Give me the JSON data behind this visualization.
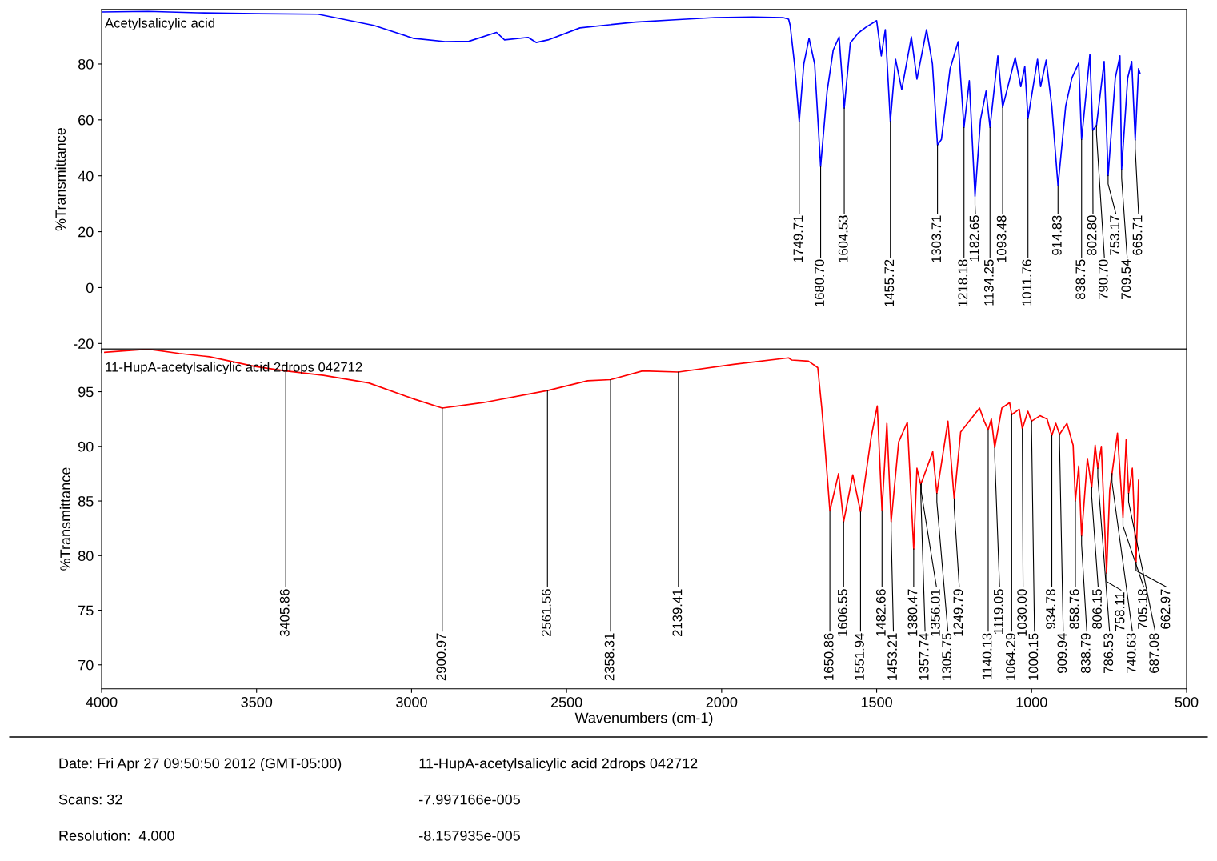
{
  "chart_data": [
    {
      "type": "line",
      "ylabel": "%Transmittance",
      "xlim": [
        4000,
        500
      ],
      "xticks": [
        4000,
        3500,
        3000,
        2500,
        2000,
        1500,
        1000,
        500
      ],
      "ylim": [
        -22,
        99.5
      ],
      "yticks": [
        -20,
        0,
        20,
        40,
        60,
        80
      ],
      "tick_labels": "y",
      "grid": false,
      "legend": false,
      "line_style": "solid",
      "series": [
        {
          "name": "Acetylsalicylic acid",
          "color": "#0000ff",
          "x": [
            4000,
            3850,
            3690,
            3500,
            3302,
            3122,
            2995,
            2892,
            2815,
            2726,
            2700,
            2624,
            2598,
            2560,
            2457,
            2278,
            2150,
            2022,
            1900,
            1802,
            1784,
            1779,
            1765,
            1749.71,
            1735,
            1718,
            1700,
            1680.7,
            1660,
            1640,
            1621,
            1604.53,
            1585,
            1560,
            1534,
            1500,
            1485,
            1472,
            1455.72,
            1439,
            1419,
            1388,
            1370,
            1339,
            1320,
            1303.71,
            1291,
            1263,
            1237,
            1218.18,
            1201,
            1182.65,
            1165,
            1147,
            1134.25,
            1109,
            1093.48,
            1053,
            1035,
            1022,
            1011.76,
            981,
            971,
            953,
            935,
            914.83,
            890,
            870,
            848,
            838.75,
            812,
            802.8,
            790.7,
            766,
            753.17,
            730,
            715,
            709.54,
            690,
            677,
            665.71,
            655,
            650
          ],
          "values": [
            98.6,
            98.8,
            98.3,
            98.0,
            97.8,
            93.8,
            89.2,
            88.0,
            88.1,
            91.3,
            88.6,
            89.5,
            87.7,
            88.6,
            92.9,
            95.0,
            95.8,
            96.6,
            96.8,
            96.6,
            96.0,
            93.8,
            80.0,
            59.4,
            80.0,
            89.2,
            80.0,
            43.3,
            70.0,
            85.0,
            89.7,
            64.2,
            87.5,
            91.0,
            93.2,
            95.5,
            82.9,
            92.3,
            59.4,
            81.7,
            70.8,
            89.7,
            74.6,
            92.3,
            80.0,
            51.0,
            53.0,
            78.3,
            88.0,
            57.3,
            74.0,
            32.7,
            60.0,
            70.3,
            57.3,
            82.9,
            64.5,
            82.3,
            71.9,
            79.1,
            60.5,
            81.7,
            71.9,
            81.4,
            65.0,
            36.4,
            65.0,
            75.0,
            80.3,
            53.0,
            83.4,
            56.2,
            58.0,
            80.9,
            40.1,
            75.0,
            82.9,
            42.2,
            75.0,
            80.9,
            52.8,
            78.3,
            76.6
          ]
        }
      ],
      "annotations": [
        {
          "text": "1749.71",
          "x": 1749.71,
          "y": 59.4
        },
        {
          "text": "1680.70",
          "x": 1680.7,
          "y": 43.3
        },
        {
          "text": "1604.53",
          "x": 1604.53,
          "y": 64.2
        },
        {
          "text": "1455.72",
          "x": 1455.72,
          "y": 59.4
        },
        {
          "text": "1303.71",
          "x": 1303.71,
          "y": 51.0
        },
        {
          "text": "1218.18",
          "x": 1218.18,
          "y": 57.3
        },
        {
          "text": "1182.65",
          "x": 1182.65,
          "y": 32.7
        },
        {
          "text": "1134.25",
          "x": 1134.25,
          "y": 57.3
        },
        {
          "text": "1093.48",
          "x": 1093.48,
          "y": 64.5
        },
        {
          "text": "1011.76",
          "x": 1011.76,
          "y": 60.5
        },
        {
          "text": "914.83",
          "x": 914.83,
          "y": 36.4
        },
        {
          "text": "838.75",
          "x": 838.75,
          "y": 53.0
        },
        {
          "text": "802.80",
          "x": 802.8,
          "y": 56.2
        },
        {
          "text": "790.70",
          "x": 790.7,
          "y": 58.0
        },
        {
          "text": "753.17",
          "x": 753.17,
          "y": 40.1
        },
        {
          "text": "709.54",
          "x": 709.54,
          "y": 42.2
        },
        {
          "text": "665.71",
          "x": 665.71,
          "y": 52.8
        }
      ]
    },
    {
      "type": "line",
      "ylabel": "%Transmittance",
      "xlabel": "Wavenumbers (cm-1)",
      "xlim": [
        4000,
        500
      ],
      "xticks": [
        4000,
        3500,
        3000,
        2500,
        2000,
        1500,
        1000,
        500
      ],
      "ylim": [
        67.8,
        98.9
      ],
      "yticks": [
        70,
        75,
        80,
        85,
        90,
        95
      ],
      "grid": false,
      "legend": false,
      "line_style": "solid",
      "series": [
        {
          "name": "11-HupA-acetylsalicylic acid 2drops 042712",
          "color": "#ff0000",
          "x": [
            3990,
            3850,
            3750,
            3652,
            3504,
            3405.86,
            3284,
            3138,
            2989,
            2900.97,
            2769,
            2561.56,
            2432,
            2358.31,
            2255,
            2139.41,
            1961,
            1784,
            1774,
            1720,
            1690,
            1677,
            1667,
            1650.86,
            1623,
            1606.55,
            1577,
            1551.94,
            1518,
            1498,
            1482.66,
            1467,
            1453.21,
            1429,
            1401,
            1380.47,
            1370,
            1357.74,
            1319,
            1305.75,
            1270,
            1249.79,
            1229,
            1168,
            1153,
            1140.13,
            1130,
            1119.05,
            1096,
            1071,
            1064.29,
            1040,
            1030.0,
            1012,
            1000.15,
            973,
            950,
            934.78,
            922,
            909.94,
            886,
            866,
            858.76,
            848,
            838.79,
            820,
            806.15,
            795,
            786.53,
            775,
            758.11,
            748,
            740.63,
            723,
            705.18,
            695,
            687.08,
            675,
            662.97,
            655
          ],
          "values": [
            98.6,
            98.9,
            98.5,
            98.2,
            97.3,
            96.9,
            96.5,
            95.8,
            94.3,
            93.5,
            94.0,
            95.1,
            96.0,
            96.1,
            96.9,
            96.8,
            97.5,
            98.1,
            97.9,
            97.8,
            97.2,
            93.5,
            90.1,
            84.1,
            87.5,
            83.1,
            87.4,
            84.0,
            90.8,
            93.7,
            84.1,
            92.1,
            83.1,
            90.4,
            92.2,
            80.6,
            88.0,
            86.5,
            89.5,
            85.7,
            92.3,
            85.2,
            91.3,
            93.5,
            92.3,
            91.5,
            92.5,
            89.9,
            93.5,
            94.0,
            92.9,
            93.4,
            91.6,
            93.2,
            92.3,
            92.8,
            92.5,
            91.0,
            92.1,
            91.1,
            92.1,
            90.1,
            85.0,
            88.2,
            81.8,
            88.9,
            86.2,
            90.1,
            88.0,
            90.0,
            78.4,
            86.0,
            87.5,
            91.2,
            83.5,
            90.6,
            85.7,
            88.0,
            79.4,
            86.9
          ]
        }
      ],
      "annotations": [
        {
          "text": "3405.86",
          "x": 3405.86,
          "y": 96.9
        },
        {
          "text": "2900.97",
          "x": 2900.97,
          "y": 93.5
        },
        {
          "text": "2561.56",
          "x": 2561.56,
          "y": 95.1
        },
        {
          "text": "2358.31",
          "x": 2358.31,
          "y": 96.1
        },
        {
          "text": "2139.41",
          "x": 2139.41,
          "y": 96.8
        },
        {
          "text": "1650.86",
          "x": 1650.86,
          "y": 84.1
        },
        {
          "text": "1606.55",
          "x": 1606.55,
          "y": 83.1
        },
        {
          "text": "1551.94",
          "x": 1551.94,
          "y": 84.0
        },
        {
          "text": "1482.66",
          "x": 1482.66,
          "y": 84.1
        },
        {
          "text": "1453.21",
          "x": 1453.21,
          "y": 83.1
        },
        {
          "text": "1380.47",
          "x": 1380.47,
          "y": 80.6
        },
        {
          "text": "1357.74",
          "x": 1357.74,
          "y": 86.5
        },
        {
          "text": "1356.01",
          "x": 1356.01,
          "y": 86.6
        },
        {
          "text": "1305.75",
          "x": 1305.75,
          "y": 85.7
        },
        {
          "text": "1249.79",
          "x": 1249.79,
          "y": 85.2
        },
        {
          "text": "1140.13",
          "x": 1140.13,
          "y": 91.5
        },
        {
          "text": "1119.05",
          "x": 1119.05,
          "y": 89.9
        },
        {
          "text": "1064.29",
          "x": 1064.29,
          "y": 92.9
        },
        {
          "text": "1030.00",
          "x": 1030.0,
          "y": 91.6
        },
        {
          "text": "1000.15",
          "x": 1000.15,
          "y": 92.3
        },
        {
          "text": "934.78",
          "x": 934.78,
          "y": 91.0
        },
        {
          "text": "909.94",
          "x": 909.94,
          "y": 91.1
        },
        {
          "text": "858.76",
          "x": 858.76,
          "y": 85.0
        },
        {
          "text": "838.79",
          "x": 838.79,
          "y": 81.8
        },
        {
          "text": "806.15",
          "x": 806.15,
          "y": 86.2
        },
        {
          "text": "786.53",
          "x": 786.53,
          "y": 88.0
        },
        {
          "text": "758.11",
          "x": 758.11,
          "y": 78.4
        },
        {
          "text": "740.63",
          "x": 740.63,
          "y": 87.5
        },
        {
          "text": "705.18",
          "x": 705.18,
          "y": 83.5
        },
        {
          "text": "687.08",
          "x": 687.08,
          "y": 85.7
        },
        {
          "text": "662.97",
          "x": 662.97,
          "y": 79.4
        },
        "Date: Fri Apr 27 09:50:50 2012 (GMT-05:00)",
        "11-HupA-acetylsalicylic acid 2drops 042712",
        "Scans: 32",
        "-7.997166e-005",
        "Resolution:  4.000",
        "-8.157935e-005"
      ]
    }
  ]
}
